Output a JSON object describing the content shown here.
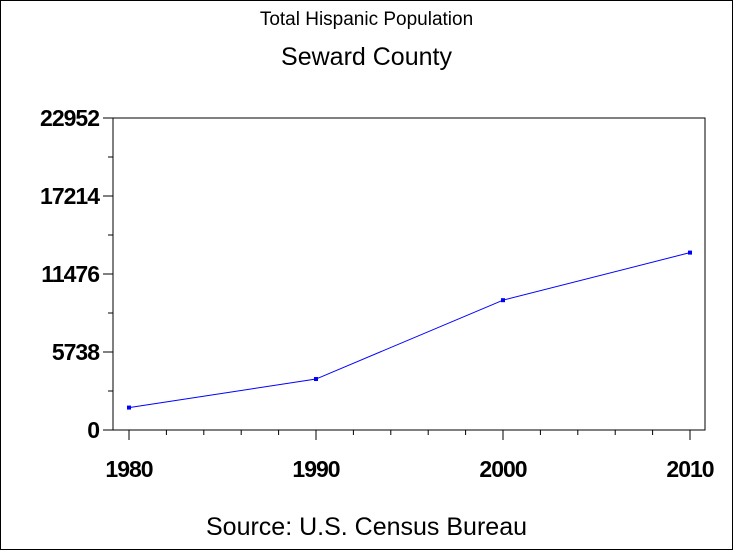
{
  "chart_data": {
    "type": "line",
    "title": "Total Hispanic Population",
    "subtitle": "Seward County",
    "footnote": "Source: U.S. Census Bureau",
    "xlabel": "",
    "ylabel": "",
    "x": [
      1980,
      1990,
      2000,
      2010
    ],
    "x_tick_labels": [
      "1980",
      "1990",
      "2000",
      "2010"
    ],
    "series": [
      {
        "values": [
          1650,
          3750,
          9550,
          13050
        ],
        "color": "#0000ff"
      }
    ],
    "y_ticks": [
      0,
      5738,
      11476,
      17214,
      22952
    ],
    "y_tick_labels": [
      "0",
      "5738",
      "11476",
      "17214",
      "22952"
    ],
    "ylim": [
      0,
      22952
    ],
    "xlim": [
      1980,
      2010
    ],
    "grid": false,
    "legend": "none",
    "marker": "square"
  }
}
